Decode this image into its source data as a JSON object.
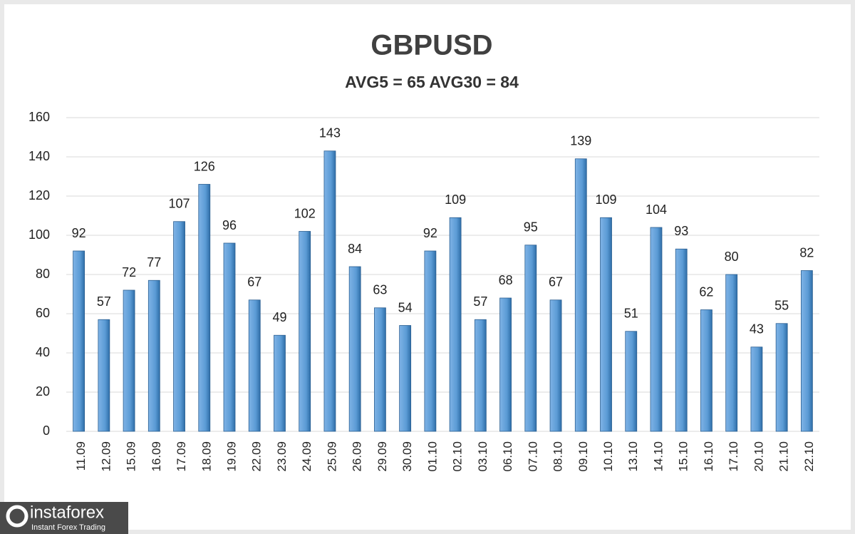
{
  "chart_data": {
    "type": "bar",
    "title": "GBPUSD",
    "subtitle": "AVG5 = 65 AVG30 = 84",
    "categories": [
      "11.09",
      "12.09",
      "15.09",
      "16.09",
      "17.09",
      "18.09",
      "19.09",
      "22.09",
      "23.09",
      "24.09",
      "25.09",
      "26.09",
      "29.09",
      "30.09",
      "01.10",
      "02.10",
      "03.10",
      "06.10",
      "07.10",
      "08.10",
      "09.10",
      "10.10",
      "13.10",
      "14.10",
      "15.10",
      "16.10",
      "17.10",
      "20.10",
      "21.10",
      "22.10"
    ],
    "values": [
      92,
      57,
      72,
      77,
      107,
      126,
      96,
      67,
      49,
      102,
      143,
      84,
      63,
      54,
      92,
      109,
      57,
      68,
      95,
      67,
      139,
      109,
      51,
      104,
      93,
      62,
      80,
      43,
      55,
      82
    ],
    "color": "#5b9bd5",
    "ylim": [
      0,
      160
    ],
    "yticks": [
      0,
      20,
      40,
      60,
      80,
      100,
      120,
      140,
      160
    ],
    "grid": true,
    "data_labels": true
  },
  "watermark": {
    "brand": "instaforex",
    "tagline": "Instant Forex Trading"
  }
}
